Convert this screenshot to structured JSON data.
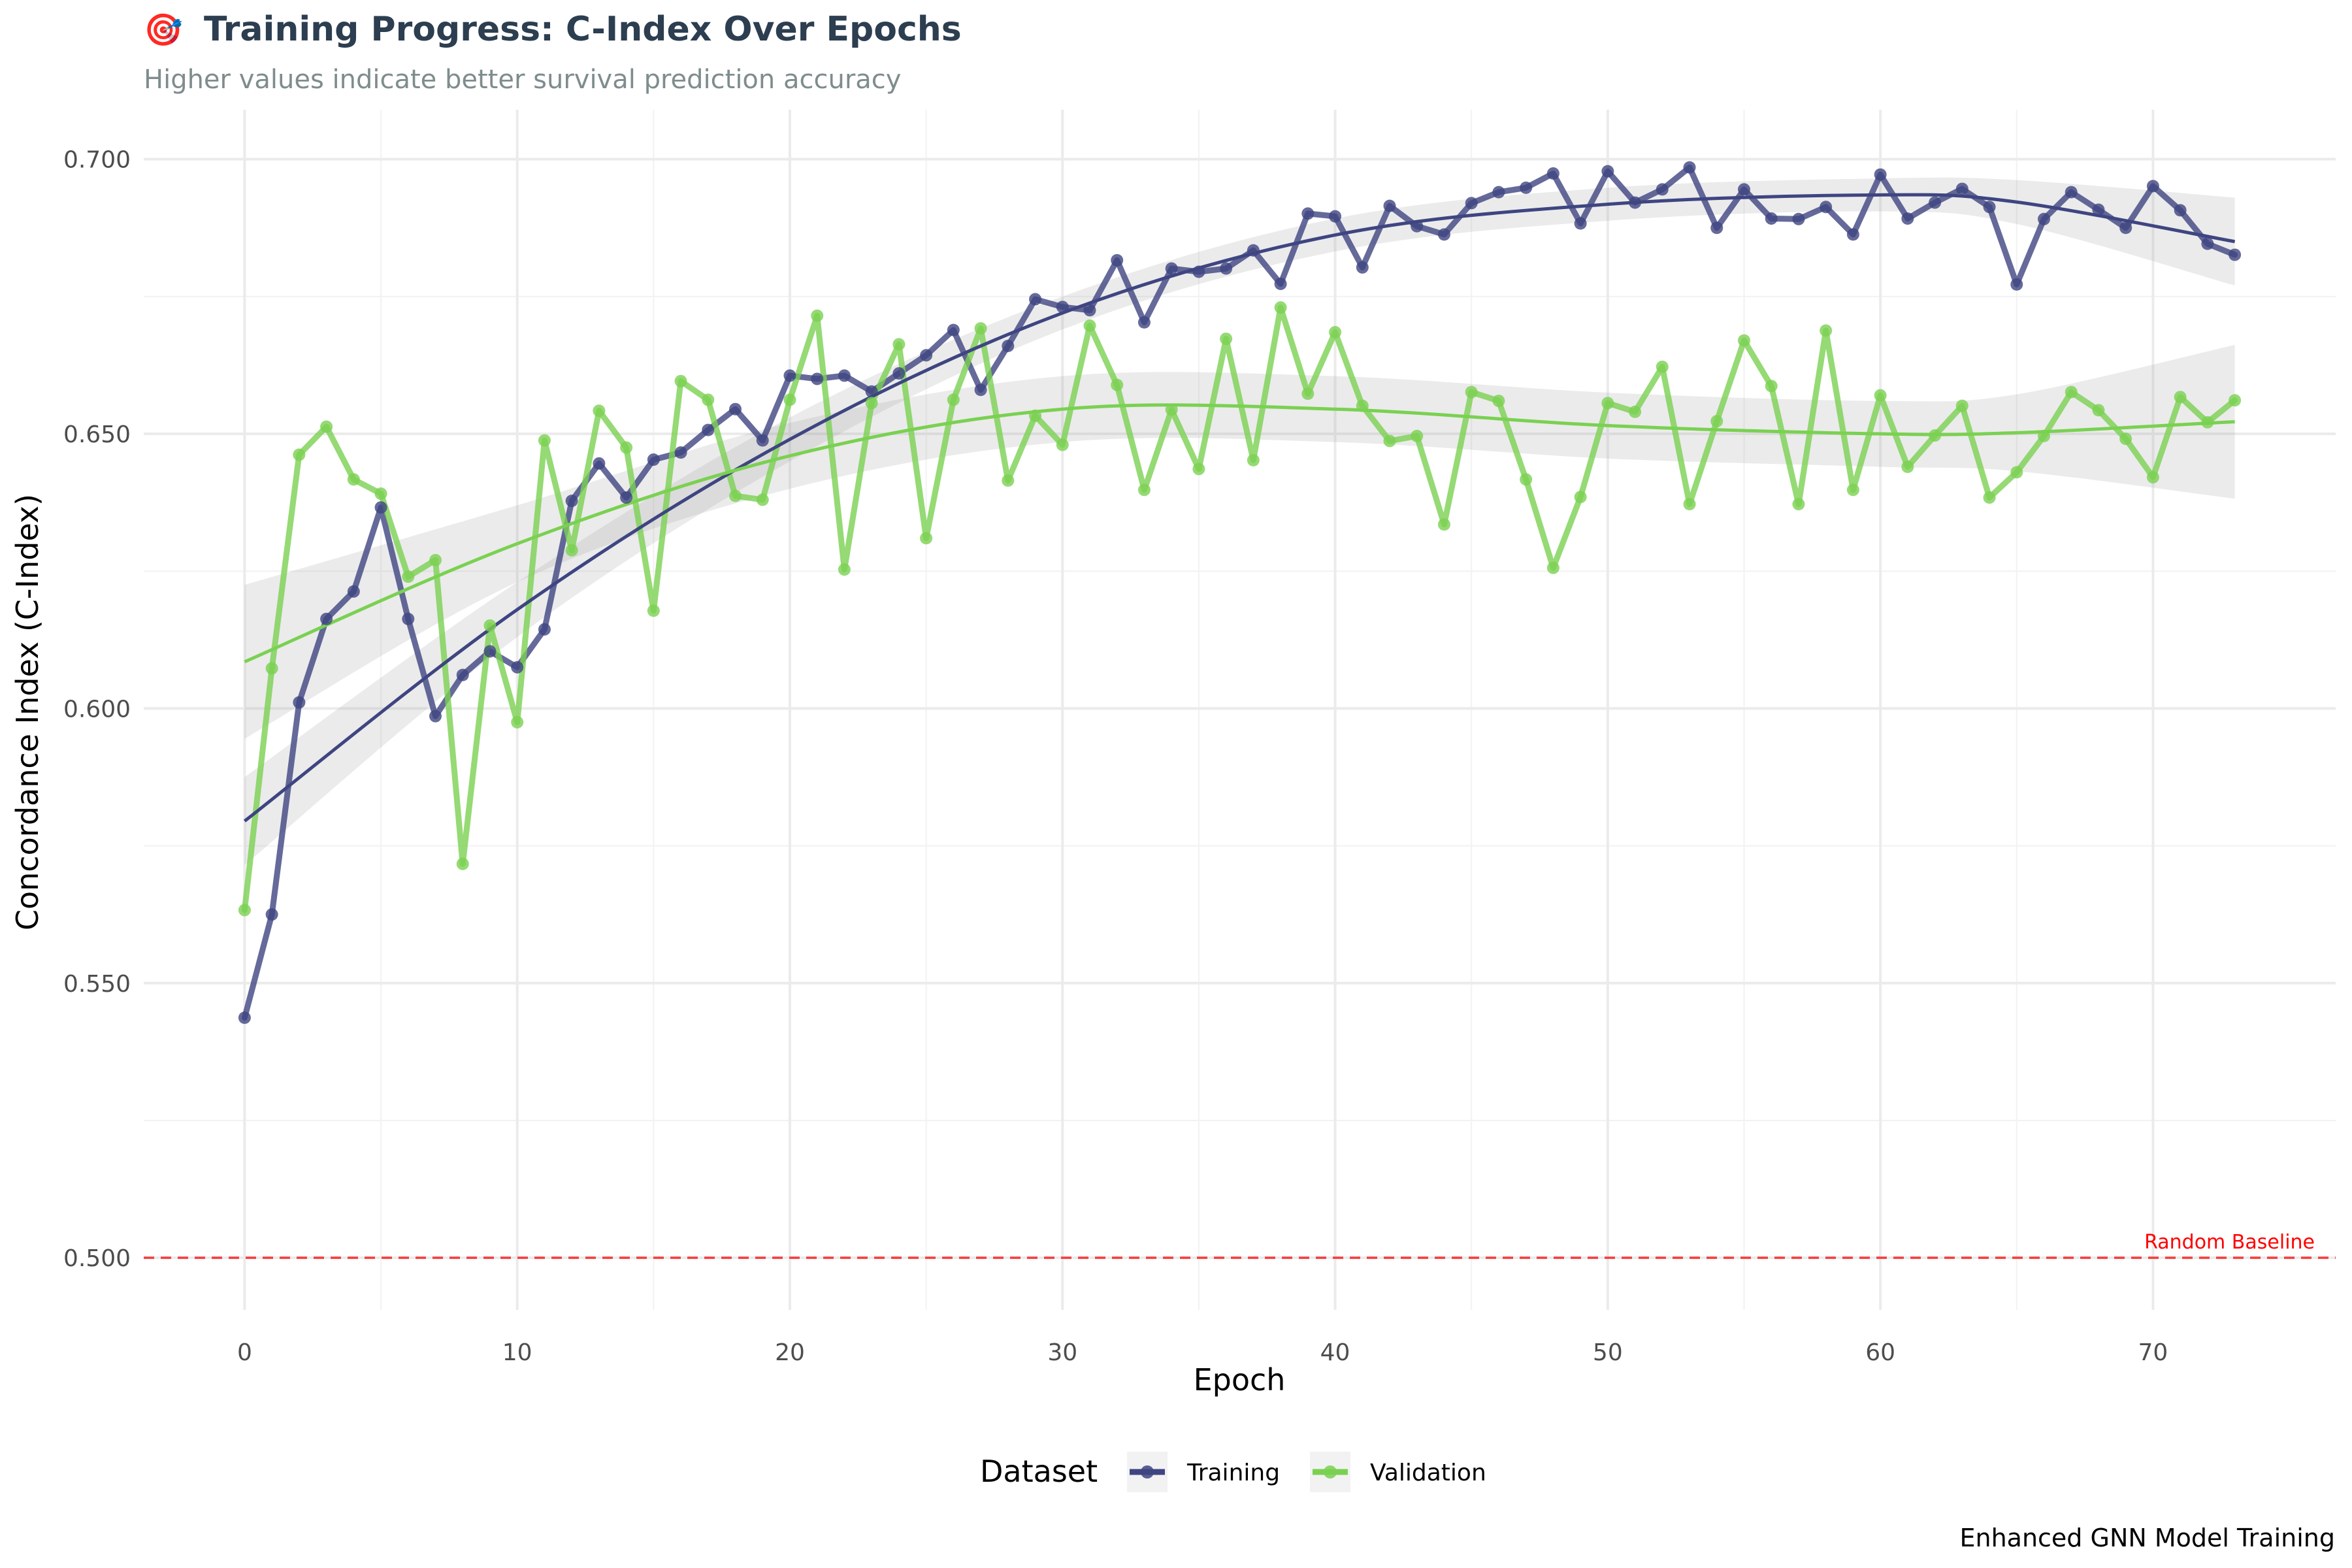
{
  "chart_data": {
    "type": "line",
    "title_icon": "🎯",
    "title": "Training Progress: C-Index Over Epochs",
    "subtitle": "Higher values indicate better survival prediction accuracy",
    "xlabel": "Epoch",
    "ylabel": "Concordance Index (C-Index)",
    "caption": "Enhanced GNN Model Training",
    "xlim": [
      -3.7,
      76.7
    ],
    "ylim": [
      0.4905,
      0.709
    ],
    "x_ticks": [
      0,
      10,
      20,
      30,
      40,
      50,
      60,
      70
    ],
    "x_tick_labels": [
      "0",
      "10",
      "20",
      "30",
      "40",
      "50",
      "60",
      "70"
    ],
    "y_ticks": [
      0.5,
      0.55,
      0.6,
      0.65,
      0.7
    ],
    "y_tick_labels": [
      "0.500",
      "0.550",
      "0.600",
      "0.650",
      "0.700"
    ],
    "grid": true,
    "legend": {
      "position": "bottom",
      "title": "Dataset",
      "entries": [
        "Training",
        "Validation"
      ]
    },
    "reference_line": {
      "y": 0.5,
      "label": "Random Baseline",
      "color": "#ff0000",
      "style": "dashed"
    },
    "x": [
      0,
      1,
      2,
      3,
      4,
      5,
      6,
      7,
      8,
      9,
      10,
      11,
      12,
      13,
      14,
      15,
      16,
      17,
      18,
      19,
      20,
      21,
      22,
      23,
      24,
      25,
      26,
      27,
      28,
      29,
      30,
      31,
      32,
      33,
      34,
      35,
      36,
      37,
      38,
      39,
      40,
      41,
      42,
      43,
      44,
      45,
      46,
      47,
      48,
      49,
      50,
      51,
      52,
      53,
      54,
      55,
      56,
      57,
      58,
      59,
      60,
      61,
      62,
      63,
      64,
      65,
      66,
      67,
      68,
      69,
      70,
      71,
      72,
      73
    ],
    "series": [
      {
        "name": "Training",
        "color": "#3e4581",
        "values": [
          0.5437,
          0.5625,
          0.6011,
          0.6163,
          0.6213,
          0.6366,
          0.6163,
          0.5986,
          0.6061,
          0.6104,
          0.6075,
          0.6144,
          0.6378,
          0.6446,
          0.6384,
          0.6453,
          0.6466,
          0.6507,
          0.6545,
          0.6488,
          0.6606,
          0.66,
          0.6606,
          0.6577,
          0.661,
          0.6643,
          0.6689,
          0.658,
          0.666,
          0.6745,
          0.6731,
          0.6725,
          0.6816,
          0.6703,
          0.6801,
          0.6795,
          0.6801,
          0.6834,
          0.6773,
          0.6901,
          0.6896,
          0.6803,
          0.6915,
          0.6878,
          0.6863,
          0.692,
          0.694,
          0.6948,
          0.6974,
          0.6883,
          0.6978,
          0.6921,
          0.6945,
          0.6985,
          0.6875,
          0.6945,
          0.6892,
          0.6891,
          0.6913,
          0.6863,
          0.6972,
          0.6892,
          0.6921,
          0.6946,
          0.6913,
          0.6772,
          0.6891,
          0.694,
          0.6908,
          0.6875,
          0.6951,
          0.6907,
          0.6846,
          0.6826
        ],
        "smooth": [
          0.5795,
          0.618,
          0.649,
          0.672,
          0.6862,
          0.6918,
          0.6935,
          0.6922,
          0.685
        ],
        "smooth_se": [
          0.008,
          0.005,
          0.004,
          0.003,
          0.003,
          0.003,
          0.003,
          0.004,
          0.008
        ]
      },
      {
        "name": "Validation",
        "color": "#7ad151",
        "values": [
          0.5633,
          0.6073,
          0.6462,
          0.6513,
          0.6417,
          0.6391,
          0.624,
          0.627,
          0.5717,
          0.6151,
          0.5975,
          0.6488,
          0.6288,
          0.6542,
          0.6475,
          0.6178,
          0.6596,
          0.6562,
          0.6387,
          0.638,
          0.6562,
          0.6715,
          0.6253,
          0.6556,
          0.6663,
          0.631,
          0.6562,
          0.6692,
          0.6415,
          0.6533,
          0.648,
          0.6697,
          0.6589,
          0.6398,
          0.6544,
          0.6436,
          0.6673,
          0.6452,
          0.673,
          0.6573,
          0.6685,
          0.6551,
          0.6487,
          0.6496,
          0.6335,
          0.6576,
          0.656,
          0.6417,
          0.6256,
          0.6385,
          0.6556,
          0.654,
          0.6622,
          0.6372,
          0.6523,
          0.667,
          0.6587,
          0.6372,
          0.6688,
          0.6398,
          0.657,
          0.644,
          0.6497,
          0.6551,
          0.6384,
          0.643,
          0.6496,
          0.6576,
          0.6543,
          0.6491,
          0.6421,
          0.6567,
          0.6521,
          0.6561
        ],
        "smooth": [
          0.6085,
          0.63,
          0.646,
          0.6545,
          0.6545,
          0.6515,
          0.65,
          0.6502,
          0.6522
        ],
        "smooth_se": [
          0.014,
          0.007,
          0.006,
          0.006,
          0.006,
          0.006,
          0.006,
          0.007,
          0.014
        ]
      }
    ],
    "smooth_x": [
      0,
      10,
      20,
      30,
      40,
      50,
      60,
      65,
      73
    ]
  }
}
